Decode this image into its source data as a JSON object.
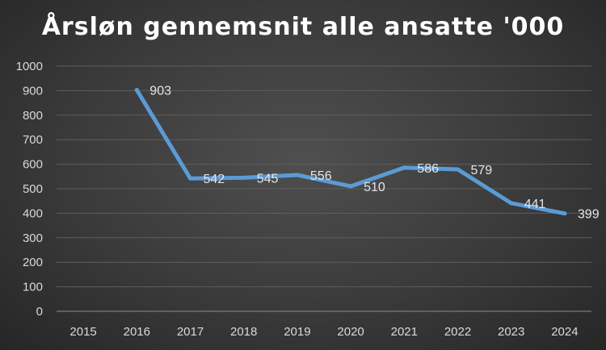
{
  "chart_data": {
    "type": "line",
    "title": "Årsløn gennemsnit alle ansatte '000",
    "xlabel": "",
    "ylabel": "",
    "categories": [
      "2015",
      "2016",
      "2017",
      "2018",
      "2019",
      "2020",
      "2021",
      "2022",
      "2023",
      "2024"
    ],
    "series": [
      {
        "values": [
          null,
          903,
          542,
          545,
          556,
          510,
          586,
          579,
          441,
          399
        ]
      }
    ],
    "ylim": [
      0,
      1000
    ],
    "yticks": [
      0,
      100,
      200,
      300,
      400,
      500,
      600,
      700,
      800,
      900,
      1000
    ],
    "grid": true,
    "legend": "none",
    "colors": {
      "line": "#5b9bd5",
      "grid": "#5e5e5e",
      "axis": "#8c8c8c"
    }
  }
}
